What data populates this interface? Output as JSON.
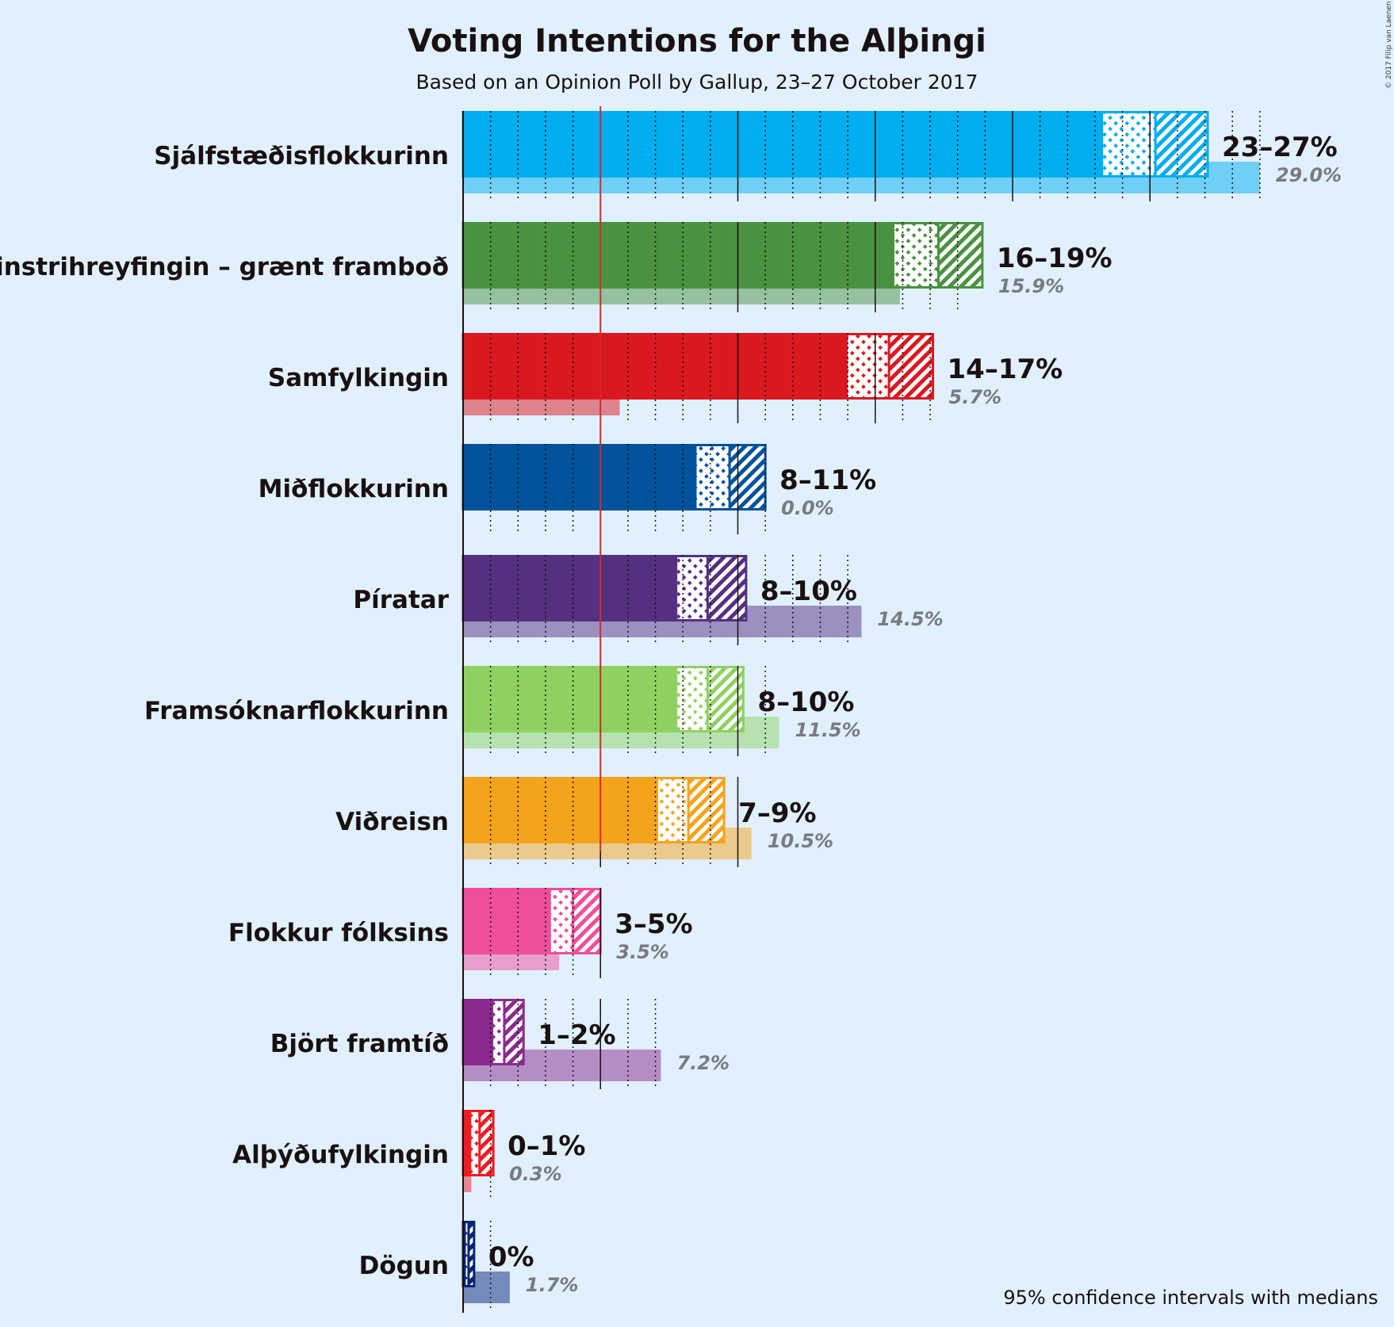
{
  "chart_data": {
    "type": "bar",
    "title": "Voting Intentions for the Alþingi",
    "subtitle": "Based on an Opinion Poll by Gallup, 23–27 October 2017",
    "footnote": "95% confidence intervals with medians",
    "copyright": "© 2017 Filip van Laenen",
    "threshold": 5,
    "xlim": [
      0,
      30
    ],
    "parties": [
      {
        "name": "Sjálfstæðisflokkurinn",
        "color": "#00adef",
        "low": 23.3,
        "median": 25.2,
        "high": 27.1,
        "range_label": "23–27%",
        "previous": 29.0,
        "previous_label": "29.0%"
      },
      {
        "name": "Vinstrihreyfingin – grænt framboð",
        "color": "#4a9141",
        "low": 15.7,
        "median": 17.3,
        "high": 18.9,
        "range_label": "16–19%",
        "previous": 15.9,
        "previous_label": "15.9%"
      },
      {
        "name": "Samfylkingin",
        "color": "#da1820",
        "low": 14.0,
        "median": 15.5,
        "high": 17.1,
        "range_label": "14–17%",
        "previous": 5.7,
        "previous_label": "5.7%"
      },
      {
        "name": "Miðflokkurinn",
        "color": "#00529a",
        "low": 8.5,
        "median": 9.7,
        "high": 11.0,
        "range_label": "8–11%",
        "previous": 0.0,
        "previous_label": "0.0%"
      },
      {
        "name": "Píratar",
        "color": "#553081",
        "low": 7.8,
        "median": 8.9,
        "high": 10.3,
        "range_label": "8–10%",
        "previous": 14.5,
        "previous_label": "14.5%"
      },
      {
        "name": "Framsóknarflokkurinn",
        "color": "#8fd161",
        "low": 7.8,
        "median": 8.9,
        "high": 10.2,
        "range_label": "8–10%",
        "previous": 11.5,
        "previous_label": "11.5%"
      },
      {
        "name": "Viðreisn",
        "color": "#f5a31c",
        "low": 7.1,
        "median": 8.2,
        "high": 9.5,
        "range_label": "7–9%",
        "previous": 10.5,
        "previous_label": "10.5%"
      },
      {
        "name": "Flokkur fólksins",
        "color": "#ef4e9b",
        "low": 3.2,
        "median": 4.0,
        "high": 5.0,
        "range_label": "3–5%",
        "previous": 3.5,
        "previous_label": "3.5%"
      },
      {
        "name": "Björt framtíð",
        "color": "#8a2a8d",
        "low": 1.1,
        "median": 1.5,
        "high": 2.2,
        "range_label": "1–2%",
        "previous": 7.2,
        "previous_label": "7.2%"
      },
      {
        "name": "Alþýðufylkingin",
        "color": "#ef1c24",
        "low": 0.3,
        "median": 0.6,
        "high": 1.1,
        "range_label": "0–1%",
        "previous": 0.3,
        "previous_label": "0.3%"
      },
      {
        "name": "Dögun",
        "color": "#0a2373",
        "low": 0.1,
        "median": 0.2,
        "high": 0.4,
        "range_label": "0%",
        "previous": 1.7,
        "previous_label": "1.7%"
      }
    ]
  }
}
